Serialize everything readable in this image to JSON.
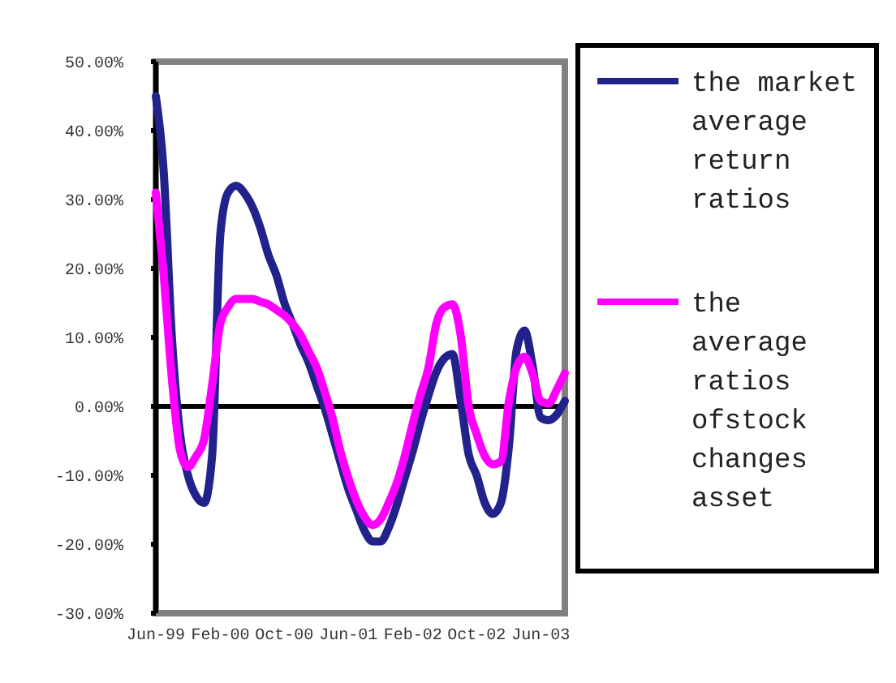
{
  "chart_data": {
    "type": "line",
    "x": [
      "1999-06",
      "1999-07",
      "1999-08",
      "1999-09",
      "1999-10",
      "1999-11",
      "1999-12",
      "2000-01",
      "2000-02",
      "2000-03",
      "2000-04",
      "2000-05",
      "2000-06",
      "2000-07",
      "2000-08",
      "2000-09",
      "2000-10",
      "2000-11",
      "2000-12",
      "2001-01",
      "2001-02",
      "2001-03",
      "2001-04",
      "2001-05",
      "2001-06",
      "2001-07",
      "2001-08",
      "2001-09",
      "2001-10",
      "2001-11",
      "2001-12",
      "2002-01",
      "2002-02",
      "2002-03",
      "2002-04",
      "2002-05",
      "2002-06",
      "2002-07",
      "2002-08",
      "2002-09",
      "2002-10",
      "2002-11",
      "2002-12",
      "2003-01",
      "2003-02",
      "2003-03",
      "2003-04",
      "2003-05",
      "2003-06",
      "2003-07",
      "2003-08",
      "2003-09"
    ],
    "series": [
      {
        "name": "the market average return ratios",
        "color": "#22228c",
        "values": [
          45,
          34,
          10,
          -4,
          -10,
          -13,
          -14,
          -7,
          25,
          31,
          32,
          31,
          29,
          26,
          22,
          19,
          15,
          12,
          9,
          6.4,
          3,
          0,
          -4,
          -8,
          -12,
          -15,
          -18,
          -19.6,
          -19.6,
          -17.6,
          -14.4,
          -10.4,
          -6.4,
          -2.4,
          1.6,
          5,
          7,
          7.6,
          1,
          -7,
          -10,
          -14,
          -15.6,
          -14,
          -5.6,
          8,
          11,
          6,
          -1.6,
          -2,
          -1.2,
          0.8
        ]
      },
      {
        "name": "the average ratios ofstock changes asset",
        "color": "#ff00ff",
        "values": [
          31,
          19,
          4,
          -6.4,
          -8.8,
          -7.2,
          -4.8,
          3.2,
          12,
          14.4,
          15.6,
          15.6,
          15.6,
          15.2,
          14.8,
          14,
          13.2,
          12,
          10.4,
          8,
          5.6,
          2.4,
          -1.6,
          -6.4,
          -10.4,
          -13.6,
          -16,
          -17.2,
          -16.4,
          -14,
          -11.2,
          -7.2,
          -2.4,
          1.6,
          5.6,
          12,
          14.4,
          14.8,
          10.4,
          0,
          -4,
          -7.2,
          -8.4,
          -8,
          0.8,
          5.6,
          7.2,
          4.8,
          0.8,
          0.4,
          2.4,
          4.8
        ]
      }
    ],
    "xlim": [
      "1999-06",
      "2003-09"
    ],
    "xticks": [
      {
        "value": "1999-06",
        "label": "Jun-99"
      },
      {
        "value": "2000-02",
        "label": "Feb-00"
      },
      {
        "value": "2000-10",
        "label": "Oct-00"
      },
      {
        "value": "2001-06",
        "label": "Jun-01"
      },
      {
        "value": "2002-02",
        "label": "Feb-02"
      },
      {
        "value": "2002-10",
        "label": "Oct-02"
      },
      {
        "value": "2003-06",
        "label": "Jun-03"
      }
    ],
    "ylim": [
      -30,
      50
    ],
    "yticks": [
      {
        "value": 50,
        "label": "50.00%"
      },
      {
        "value": 40,
        "label": "40.00%"
      },
      {
        "value": 30,
        "label": "30.00%"
      },
      {
        "value": 20,
        "label": "20.00%"
      },
      {
        "value": 10,
        "label": "10.00%"
      },
      {
        "value": 0,
        "label": "0.00%"
      },
      {
        "value": -10,
        "label": "-10.00%"
      },
      {
        "value": -20,
        "label": "-20.00%"
      },
      {
        "value": -30,
        "label": "-30.00%"
      }
    ],
    "ref_lines": [
      {
        "axis": "y",
        "value": 0,
        "color": "#000000"
      }
    ],
    "grid": false,
    "legend": "right"
  }
}
